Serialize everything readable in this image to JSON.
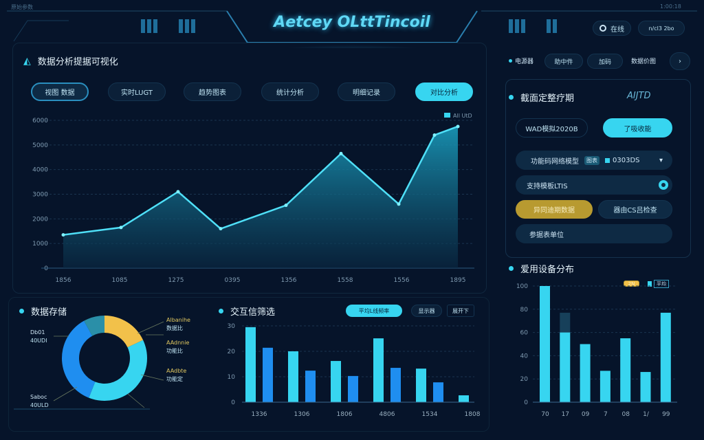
{
  "header": {
    "title": "Aetcey OLttTincoil",
    "top_left": "原始参数",
    "top_right": "1:00:18",
    "status_button": "在线",
    "status_icon": "ring-icon",
    "date_button": "n/cl3 2bo"
  },
  "left": {
    "title": "数据分析提据可视化",
    "tabs": [
      {
        "label": "视图 数据"
      },
      {
        "label": "实时LUGT"
      },
      {
        "label": "趋势图表"
      },
      {
        "label": "统计分析"
      },
      {
        "label": "明细记录"
      },
      {
        "label": "对比分析",
        "active": true
      }
    ]
  },
  "right_nav": {
    "items": [
      "电源器",
      "助中件",
      "加码",
      "数据价图"
    ],
    "next_icon": "chevron-right-icon"
  },
  "control_panel": {
    "title": "截面定整疗期",
    "logo": "AIJTD",
    "mode_button": "WAD模拟2020B",
    "apply_button": "了吸收能",
    "model_label": "功能码网络模型",
    "model_badge": "图表",
    "model_value": "0303DS",
    "template_label": "支持模板LTIS",
    "sync_button": "异同迪期数据",
    "check_button": "器由CS吕检查",
    "params_label": "参据表单位"
  },
  "colors": {
    "accent": "#37d5f0",
    "blue": "#1f8ef0",
    "gold": "#f2c14a",
    "teal": "#2a8fa8",
    "bg": "#06142a"
  },
  "chart_data": [
    {
      "type": "area",
      "legend": "All UtD",
      "legend_position": "top-right",
      "ylim": [
        0,
        6000
      ],
      "yticks": [
        0,
        1000,
        2000,
        3000,
        4000,
        5000,
        6000
      ],
      "xtick_labels": [
        "1856",
        "1085",
        "1275",
        "0395",
        "1356",
        "1558",
        "1556",
        "1895"
      ],
      "values": [
        1350,
        1650,
        3100,
        1600,
        2550,
        4650,
        2600,
        5400,
        5750
      ],
      "grid": true
    },
    {
      "type": "pie",
      "title": "数据存储",
      "donut": true,
      "slices": [
        {
          "label": "Albanihe",
          "sub": "数据比",
          "value": 18,
          "color": "#f2c14a"
        },
        {
          "label": "AAdnnie",
          "sub": "功能比",
          "value": 38,
          "color": "#37d5f0"
        },
        {
          "label": "Saboc",
          "sub": "40ULD",
          "value": 36,
          "color": "#1f8ef0"
        },
        {
          "label": "Db01",
          "sub": "40UDI",
          "value": 8,
          "color": "#2a8fa8"
        }
      ],
      "extra_labels": [
        "AAdbte",
        "功能定"
      ]
    },
    {
      "type": "bar",
      "title": "交互信筛选",
      "buttons": [
        "平均L线频率",
        "显示器",
        "展开下"
      ],
      "ylim": [
        0,
        30
      ],
      "yticks": [
        0,
        10,
        20,
        30
      ],
      "categories": [
        "1336",
        "1306",
        "1806",
        "4806",
        "1534",
        "1808"
      ],
      "series": [
        {
          "values": [
            29.5,
            20,
            16.2,
            25.1,
            13.2,
            2.7
          ],
          "color": "#37d5f0"
        },
        {
          "values": [
            21.4,
            12.4,
            10.3,
            13.5,
            7.8,
            null
          ],
          "color": "#1f8ef0"
        }
      ],
      "grid": true
    },
    {
      "type": "bar",
      "title": "爱用设备分布",
      "legend": [
        "2N",
        "平均"
      ],
      "ylim": [
        0,
        100
      ],
      "yticks": [
        0,
        20,
        40,
        60,
        80,
        100
      ],
      "categories": [
        "70",
        "17",
        "09",
        "7",
        "08",
        "1/",
        "99"
      ],
      "series": [
        {
          "values": [
            100,
            60,
            50,
            27,
            55,
            26,
            77
          ],
          "color": "#37d5f0"
        },
        {
          "values": [
            null,
            77,
            null,
            null,
            null,
            null,
            null
          ],
          "color": "#17405a",
          "stacked_ghost": true
        }
      ],
      "grid": true
    }
  ]
}
